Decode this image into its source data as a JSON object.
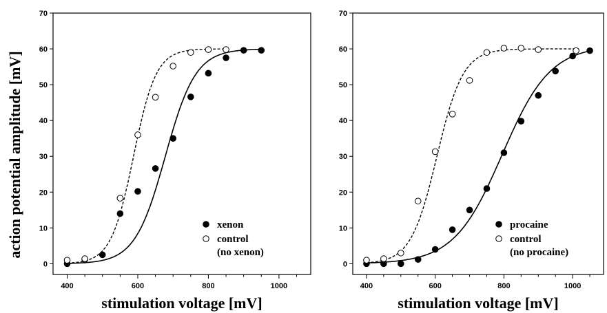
{
  "figure": {
    "ylabel": "action potential amplitude [mV]"
  },
  "chart_data": [
    {
      "type": "scatter",
      "xlabel": "stimulation voltage [mV]",
      "ylabel": "action potential amplitude [mV]",
      "xlim": [
        360,
        1090
      ],
      "ylim": [
        -3,
        70
      ],
      "x_ticks": [
        400,
        600,
        800,
        1000
      ],
      "y_ticks": [
        0,
        10,
        20,
        30,
        40,
        50,
        60,
        70
      ],
      "grid": false,
      "legend_position": "bottom-right",
      "series": [
        {
          "name": "xenon",
          "marker": "filled-circle",
          "line_style": "solid",
          "x": [
            400,
            450,
            500,
            550,
            600,
            650,
            700,
            750,
            800,
            850,
            900,
            950
          ],
          "y": [
            0,
            1.2,
            2.5,
            14,
            20.2,
            26.6,
            35,
            46.6,
            53.2,
            57.5,
            59.6,
            59.6
          ],
          "fit": {
            "top": 60,
            "half": 678,
            "slope": 43
          }
        },
        {
          "name": "control",
          "name_line2": "(no xenon)",
          "marker": "open-circle",
          "line_style": "dashed",
          "x": [
            400,
            450,
            550,
            600,
            650,
            700,
            750,
            800,
            850
          ],
          "y": [
            1,
            1.4,
            18.3,
            36,
            46.5,
            55.2,
            59,
            59.8,
            59.8
          ],
          "fit": {
            "top": 60,
            "half": 588,
            "slope": 32
          }
        }
      ]
    },
    {
      "type": "scatter",
      "xlabel": "stimulation voltage [mV]",
      "ylabel": "",
      "xlim": [
        360,
        1090
      ],
      "ylim": [
        -3,
        70
      ],
      "x_ticks": [
        400,
        600,
        800,
        1000
      ],
      "y_ticks": [
        0,
        10,
        20,
        30,
        40,
        50,
        60,
        70
      ],
      "grid": false,
      "legend_position": "bottom-right",
      "series": [
        {
          "name": "procaine",
          "marker": "filled-circle",
          "line_style": "solid",
          "x": [
            400,
            450,
            500,
            550,
            600,
            650,
            700,
            750,
            800,
            850,
            900,
            950,
            1000,
            1050
          ],
          "y": [
            0,
            0,
            0,
            1.2,
            4,
            9.5,
            15,
            21,
            31,
            39.8,
            47,
            53.8,
            58,
            59.5
          ],
          "fit": {
            "top": 61,
            "half": 795,
            "slope": 70
          }
        },
        {
          "name": "control",
          "name_line2": "(no procaine)",
          "marker": "open-circle",
          "line_style": "dashed",
          "x": [
            400,
            450,
            500,
            550,
            600,
            650,
            700,
            750,
            800,
            850,
            900,
            1010
          ],
          "y": [
            1,
            1.4,
            3,
            17.5,
            31.3,
            41.8,
            51.2,
            59,
            60.2,
            60.2,
            59.8,
            59.5
          ],
          "fit": {
            "top": 60,
            "half": 605,
            "slope": 38
          }
        }
      ]
    }
  ]
}
